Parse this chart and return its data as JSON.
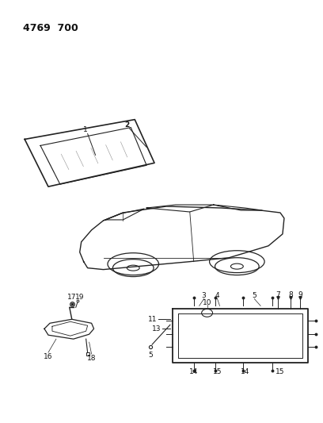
{
  "title": "4769  700",
  "title_fontsize": 9,
  "title_fontweight": "bold",
  "background_color": "#ffffff",
  "line_color": "#222222",
  "label_fontsize": 6.5,
  "fig_width": 4.08,
  "fig_height": 5.33
}
